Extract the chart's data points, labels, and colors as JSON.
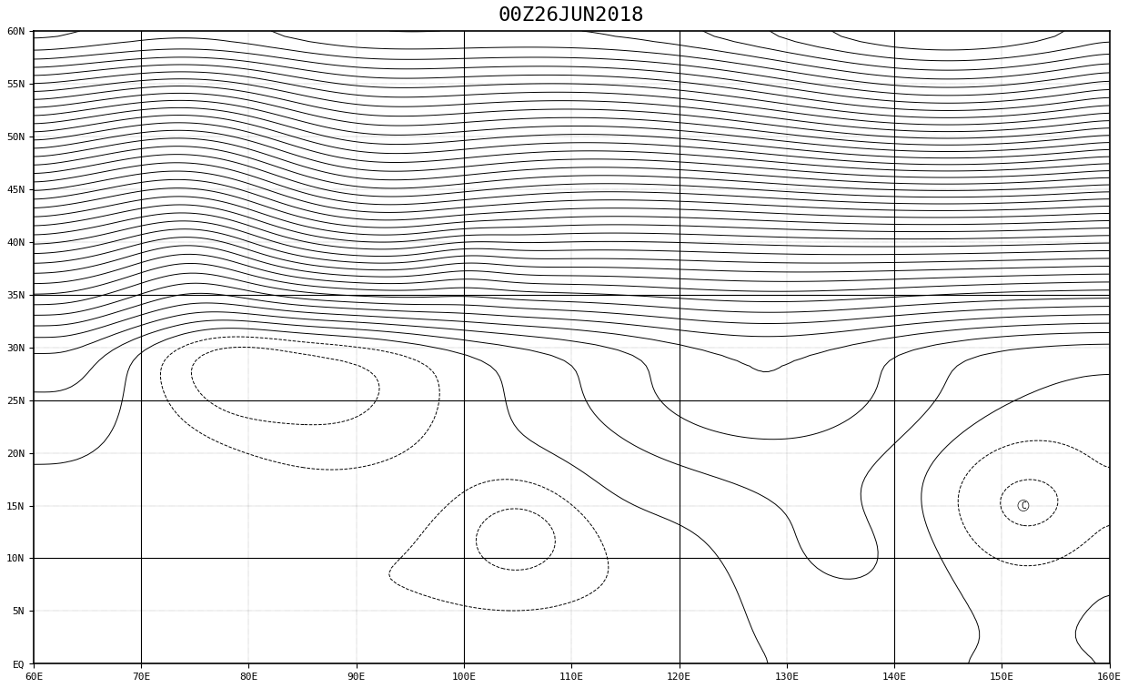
{
  "title": "00Z26JUN2018",
  "lon_min": 60,
  "lon_max": 160,
  "lat_min": 0,
  "lat_max": 60,
  "lon_ticks": [
    60,
    70,
    80,
    90,
    100,
    110,
    120,
    130,
    140,
    150,
    160
  ],
  "lat_ticks": [
    0,
    5,
    10,
    15,
    20,
    25,
    30,
    35,
    40,
    45,
    50,
    55,
    60
  ],
  "lon_labels": [
    "60E",
    "70E",
    "80E",
    "90E",
    "100E",
    "110E",
    "120E",
    "130E",
    "140E",
    "150E",
    "160E"
  ],
  "lat_labels": [
    "EQ",
    "5N",
    "10N",
    "15N",
    "20N",
    "25N",
    "30N",
    "35N",
    "40N",
    "45N",
    "50N",
    "55N",
    "60N"
  ],
  "grid_lines_lon": [
    70,
    100,
    120,
    140
  ],
  "grid_lines_lat": [
    10,
    25,
    35
  ],
  "background_color": "#ffffff",
  "contour_color": "#000000",
  "title_fontsize": 16,
  "tick_fontsize": 8
}
